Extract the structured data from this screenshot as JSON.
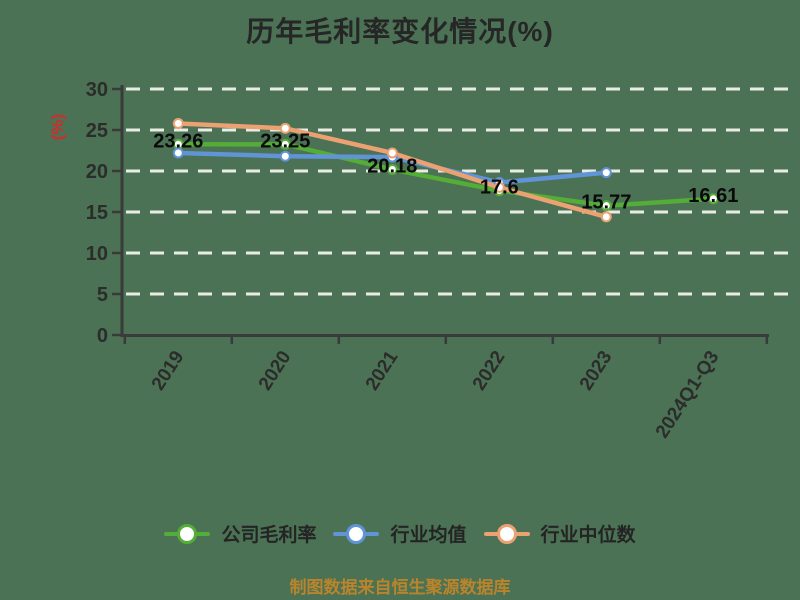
{
  "title": "历年毛利率变化情况(%)",
  "footer": {
    "text": "制图数据来自恒生聚源数据库"
  },
  "y_axis_label": "(%)",
  "colors": {
    "background": "#4b7254",
    "gridline": "#e9ece4",
    "axis": "#3a3a3a",
    "title_text": "#262626",
    "tick_text": "#2c2c2c",
    "data_label_text": "#0a0a0a",
    "ylabel_text": "#d32b2b",
    "footer_text": "#b9842b",
    "marker_fill": "#ffffff"
  },
  "chart_data": {
    "type": "line",
    "title": "历年毛利率变化情况(%)",
    "ylabel": "(%)",
    "xlabel": "",
    "categories": [
      "2019",
      "2020",
      "2021",
      "2022",
      "2023",
      "2024Q1-Q3"
    ],
    "ylim": [
      0,
      30
    ],
    "yticks": [
      0,
      5,
      10,
      15,
      20,
      25,
      30
    ],
    "grid": "horizontal-dashed-white",
    "legend_position": "bottom",
    "series": [
      {
        "name": "公司毛利率",
        "color": "#53ad36",
        "values": [
          23.26,
          23.25,
          20.18,
          17.6,
          15.77,
          16.61
        ],
        "data_labels": [
          "23.26",
          "23.25",
          "20.18",
          "17.6",
          "15.77",
          "16.61"
        ]
      },
      {
        "name": "行业均值",
        "color": "#6094d6",
        "values": [
          22.2,
          21.8,
          21.7,
          18.6,
          19.8,
          null
        ],
        "data_labels": []
      },
      {
        "name": "行业中位数",
        "color": "#eca173",
        "values": [
          25.8,
          25.2,
          22.2,
          18.0,
          14.4,
          null
        ],
        "data_labels": []
      }
    ]
  }
}
